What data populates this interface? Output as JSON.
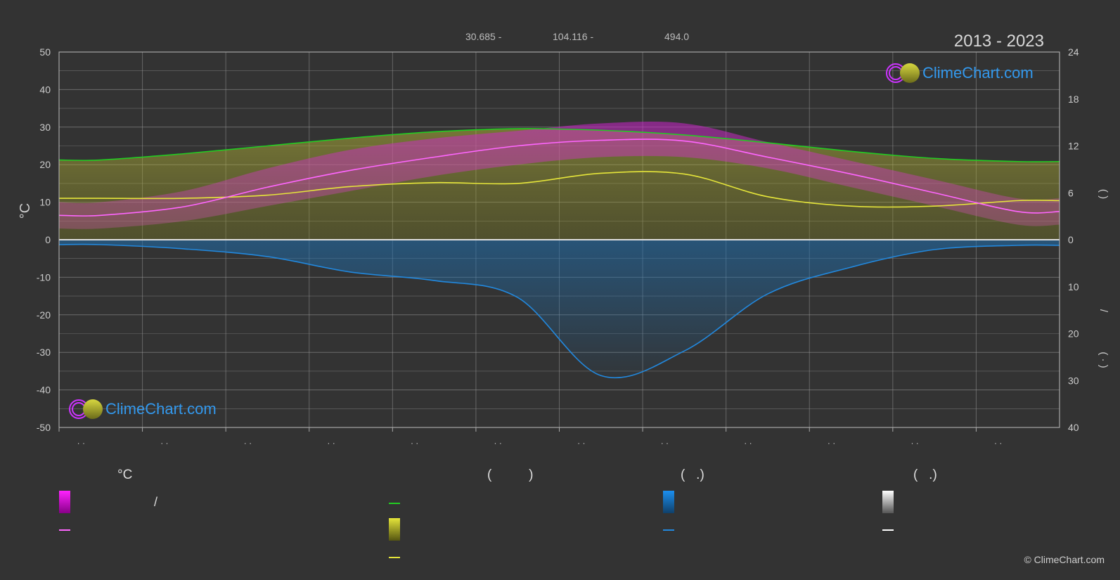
{
  "header": {
    "coords": [
      "30.685 -",
      "104.116 -",
      "494.0"
    ],
    "years": "2013 - 2023"
  },
  "brand": {
    "name": "ClimeChart.com",
    "copyright": "© ClimeChart.com"
  },
  "legend": {
    "col1_title": "°C",
    "col1_row1_sep": "/",
    "col2_title_parens": "(          )",
    "col3_title": "(   .)",
    "col4_title": "(   .)"
  },
  "axes": {
    "right_label_a": "(     )",
    "right_label_b": "/",
    "right_label_c": "(  ·  )"
  },
  "colors": {
    "daylight": "#22cc22",
    "sunshine": "#e5e53a",
    "temp_avg": "#ff66ff",
    "temp_band": "#cc33cc",
    "rain": "#2288dd",
    "snow": "#ffffff",
    "background": "#333333"
  },
  "chart_data": {
    "type": "line",
    "ylabel": "°C",
    "ylim": [
      -50,
      50
    ],
    "y_ticks": [
      50,
      40,
      30,
      20,
      10,
      0,
      -10,
      -20,
      -30,
      -40,
      -50
    ],
    "y2_hours_ticks": [
      24,
      18,
      12,
      6,
      0
    ],
    "y2_precip_ticks": [
      0,
      10,
      20,
      30,
      40
    ],
    "x_tick_labels": [
      "· ·",
      "· ·",
      "· ·",
      "· ·",
      "· ·",
      "· ·",
      "· ·",
      "· ·",
      "· ·",
      "· ·",
      "· ·",
      "· ·"
    ],
    "months": [
      1,
      2,
      3,
      4,
      5,
      6,
      7,
      8,
      9,
      10,
      11,
      12
    ],
    "series": [
      {
        "key": "daylight",
        "unit": "h",
        "values": [
          10.2,
          11.0,
          12.0,
          13.0,
          13.8,
          14.2,
          14.0,
          13.4,
          12.4,
          11.3,
          10.4,
          10.0
        ]
      },
      {
        "key": "sunshine",
        "unit": "h",
        "values": [
          5.3,
          5.3,
          5.7,
          6.8,
          7.3,
          7.2,
          8.5,
          8.4,
          5.5,
          4.3,
          4.3,
          5.0
        ]
      },
      {
        "key": "temp_avg",
        "unit": "°C",
        "values": [
          6.5,
          8.8,
          14.0,
          18.5,
          22.0,
          25.0,
          26.5,
          26.3,
          22.0,
          17.5,
          12.5,
          7.5
        ]
      },
      {
        "key": "temp_max",
        "unit": "°C",
        "values": [
          10,
          13,
          19,
          24,
          27,
          29,
          31,
          31,
          26,
          21,
          16,
          11
        ]
      },
      {
        "key": "temp_min",
        "unit": "°C",
        "values": [
          3,
          5,
          9,
          13,
          17,
          20,
          22,
          22,
          19,
          14,
          9,
          4
        ]
      },
      {
        "key": "rain",
        "unit": "mm/day",
        "values": [
          0.7,
          1.3,
          2.4,
          4.6,
          5.8,
          8.2,
          19.3,
          15.8,
          7.7,
          3.9,
          1.4,
          0.8
        ]
      }
    ]
  }
}
